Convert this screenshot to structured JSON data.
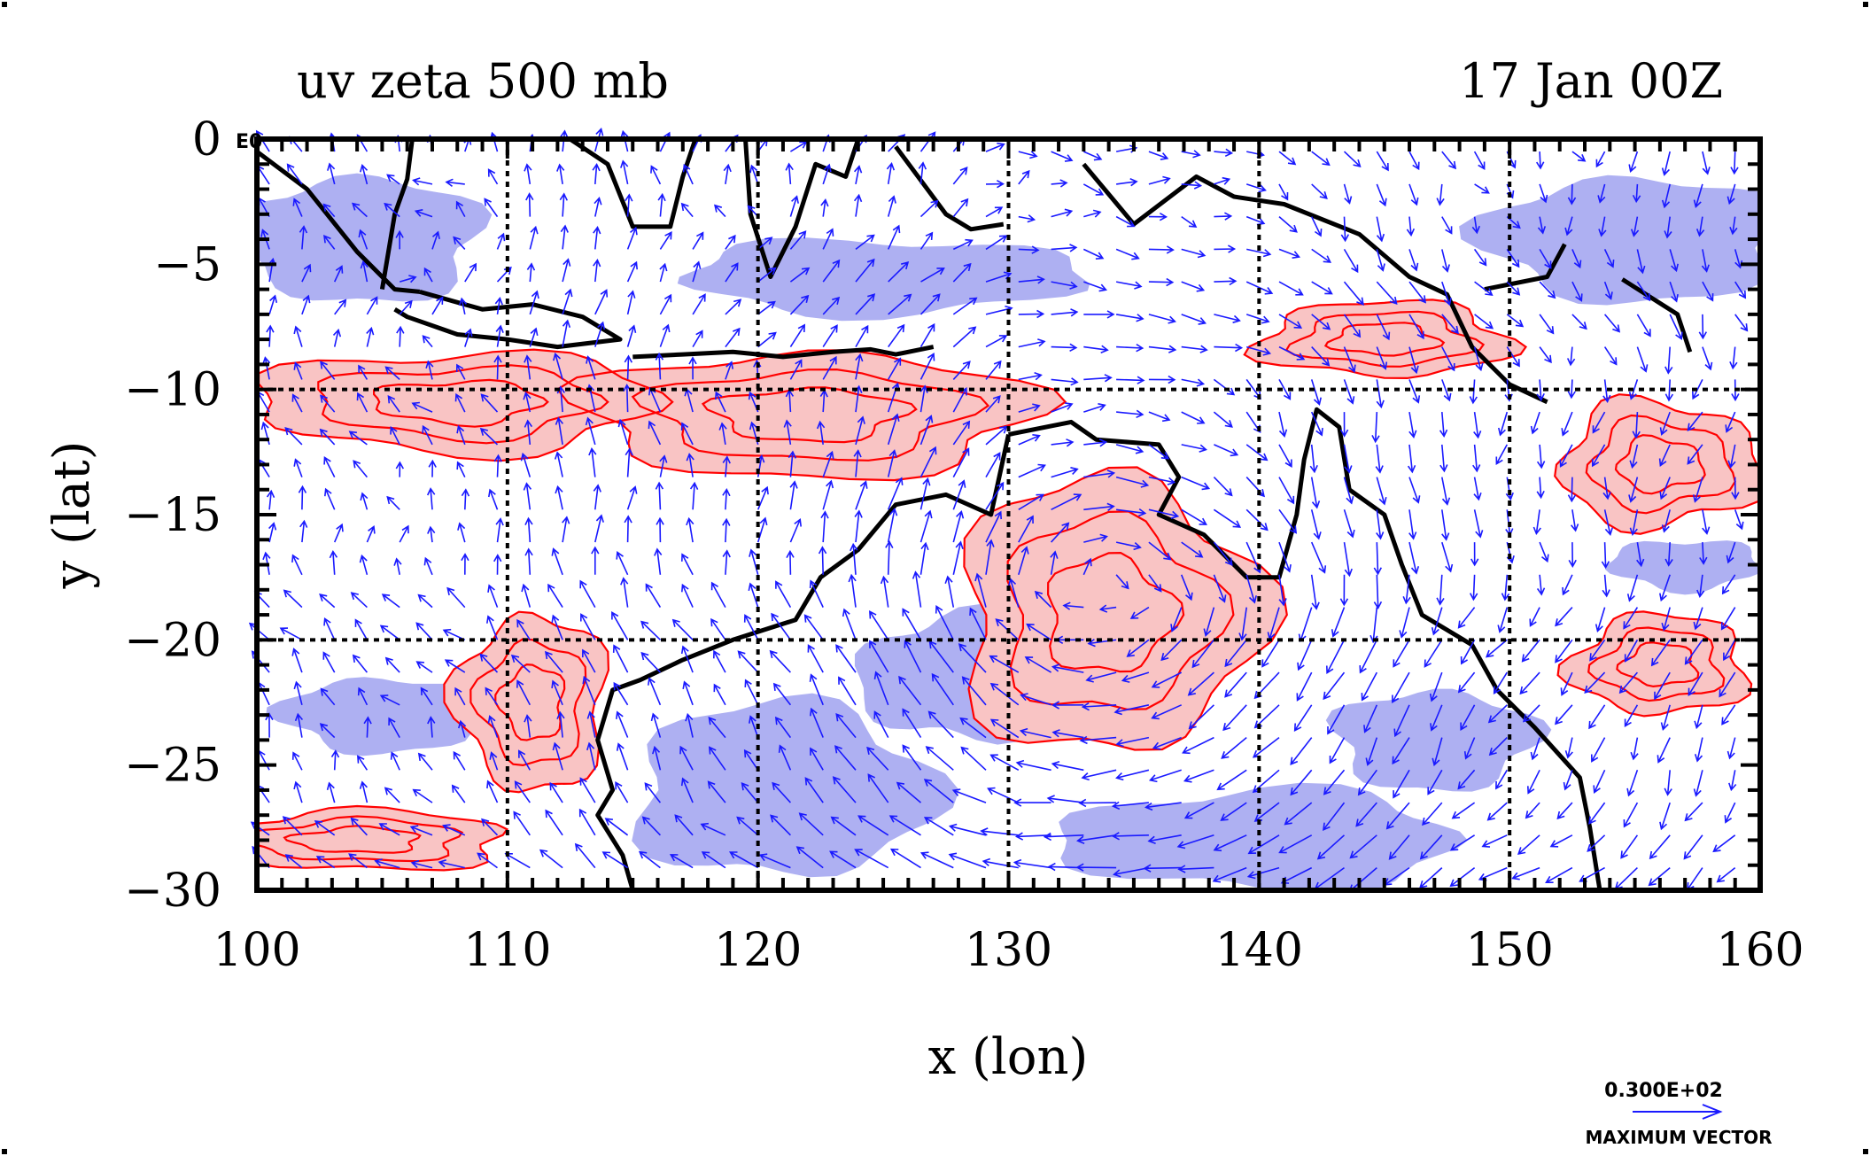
{
  "chart_data": {
    "type": "vector-field-contour",
    "title_left": "uv zeta 500 mb",
    "title_right": "17 Jan 00Z",
    "xlabel": "x (lon)",
    "ylabel": "y (lat)",
    "corner_label": "E0",
    "xlim": [
      100,
      160
    ],
    "ylim": [
      -30,
      0
    ],
    "xticks": [
      "100",
      "110",
      "120",
      "130",
      "140",
      "150",
      "160"
    ],
    "yticks": [
      "0",
      "−5",
      "−10",
      "−15",
      "−20",
      "−25",
      "−30"
    ],
    "xtick_values": [
      100,
      110,
      120,
      130,
      140,
      150,
      160
    ],
    "ytick_values": [
      0,
      -5,
      -10,
      -15,
      -20,
      -25,
      -30
    ],
    "grid": true,
    "vector_legend": {
      "value": "0.300E+02",
      "label": "MAXIMUM VECTOR"
    },
    "colors": {
      "positive_contour": "#ff0000",
      "positive_fill": "#f9c4c4",
      "negative_fill": "#aeb0f2",
      "vectors": "#1a1aff",
      "coastline": "#000000",
      "frame": "#000000"
    },
    "coastlines": [
      [
        [
          100,
          -0.5
        ],
        [
          102,
          -2
        ],
        [
          104,
          -4.5
        ],
        [
          105.5,
          -6
        ],
        [
          106.5,
          -6.1
        ]
      ],
      [
        [
          106.5,
          -6.1
        ],
        [
          109,
          -6.8
        ],
        [
          111,
          -6.6
        ],
        [
          113,
          -7.1
        ],
        [
          114.5,
          -8
        ],
        [
          112,
          -8.3
        ],
        [
          110,
          -8
        ],
        [
          108,
          -7.8
        ],
        [
          106,
          -7.1
        ],
        [
          105.5,
          -6.8
        ]
      ],
      [
        [
          115,
          -8.7
        ],
        [
          117,
          -8.6
        ],
        [
          119,
          -8.5
        ],
        [
          121,
          -8.7
        ],
        [
          123,
          -8.5
        ],
        [
          124.5,
          -8.4
        ],
        [
          125.5,
          -8.6
        ],
        [
          127,
          -8.3
        ]
      ],
      [
        [
          105,
          -6
        ],
        [
          105.5,
          -3
        ],
        [
          106,
          -1.6
        ],
        [
          106.2,
          0
        ]
      ],
      [
        [
          112.5,
          0
        ],
        [
          114,
          -1
        ],
        [
          115,
          -3.5
        ],
        [
          116.5,
          -3.5
        ],
        [
          117,
          -1.5
        ],
        [
          117.5,
          0
        ]
      ],
      [
        [
          119.5,
          0
        ],
        [
          119.7,
          -3
        ],
        [
          120.5,
          -5.5
        ],
        [
          121.5,
          -3.5
        ],
        [
          122.3,
          -1
        ],
        [
          123.5,
          -1.5
        ],
        [
          124,
          0
        ]
      ],
      [
        [
          125.5,
          -0.3
        ],
        [
          127.5,
          -3
        ],
        [
          128.5,
          -3.6
        ],
        [
          129.8,
          -3.4
        ]
      ],
      [
        [
          133,
          -1
        ],
        [
          135,
          -3.4
        ],
        [
          137.5,
          -1.5
        ],
        [
          139,
          -2.3
        ],
        [
          141,
          -2.6
        ],
        [
          144,
          -3.8
        ],
        [
          146,
          -5.5
        ],
        [
          147.5,
          -6.2
        ],
        [
          148.5,
          -8.3
        ],
        [
          150,
          -9.8
        ],
        [
          151.5,
          -10.5
        ]
      ],
      [
        [
          149,
          -6
        ],
        [
          151.5,
          -5.5
        ],
        [
          152.2,
          -4.2
        ]
      ],
      [
        [
          154.5,
          -5.6
        ],
        [
          156.7,
          -7
        ],
        [
          157.2,
          -8.5
        ]
      ],
      [
        [
          130,
          -11.8
        ],
        [
          132.5,
          -11.3
        ],
        [
          133.5,
          -12
        ],
        [
          136,
          -12.2
        ],
        [
          136.8,
          -13.5
        ],
        [
          136,
          -15
        ],
        [
          137.8,
          -15.8
        ],
        [
          139.5,
          -17.5
        ],
        [
          140.8,
          -17.5
        ],
        [
          141.5,
          -15
        ],
        [
          141.8,
          -12.8
        ],
        [
          142.3,
          -10.8
        ],
        [
          143.2,
          -11.5
        ],
        [
          143.6,
          -14
        ],
        [
          145,
          -15
        ],
        [
          145.7,
          -17
        ],
        [
          146.5,
          -19
        ],
        [
          148.5,
          -20.2
        ],
        [
          149.5,
          -22
        ],
        [
          151,
          -23.5
        ],
        [
          152.8,
          -25.5
        ],
        [
          153.2,
          -27.5
        ],
        [
          153.6,
          -30
        ]
      ],
      [
        [
          130,
          -11.8
        ],
        [
          129.3,
          -15
        ],
        [
          127.5,
          -14.2
        ],
        [
          125.5,
          -14.6
        ],
        [
          124,
          -16.4
        ],
        [
          122.5,
          -17.5
        ],
        [
          121.5,
          -19.2
        ],
        [
          119,
          -20
        ],
        [
          117,
          -20.8
        ],
        [
          115.3,
          -21.6
        ],
        [
          114.2,
          -22
        ],
        [
          113.6,
          -24
        ],
        [
          114.2,
          -26
        ],
        [
          113.6,
          -27
        ],
        [
          114.6,
          -28.6
        ],
        [
          115,
          -30
        ]
      ]
    ],
    "positive_regions": [
      {
        "center": [
          108,
          -10.5
        ],
        "radius": [
          8,
          2
        ]
      },
      {
        "center": [
          122,
          -11
        ],
        "radius": [
          9,
          2.5
        ]
      },
      {
        "center": [
          134,
          -19
        ],
        "radius": [
          6,
          5.5
        ]
      },
      {
        "center": [
          156,
          -13
        ],
        "radius": [
          4,
          2.5
        ]
      },
      {
        "center": [
          156,
          -21
        ],
        "radius": [
          3.5,
          2
        ]
      },
      {
        "center": [
          111,
          -22.5
        ],
        "radius": [
          3,
          3.5
        ]
      },
      {
        "center": [
          145,
          -8
        ],
        "radius": [
          5,
          1.5
        ]
      },
      {
        "center": [
          104,
          -28
        ],
        "radius": [
          6,
          1.2
        ]
      }
    ],
    "negative_regions": [
      {
        "center": [
          104,
          -4
        ],
        "radius": [
          5,
          2.5
        ]
      },
      {
        "center": [
          125,
          -5.5
        ],
        "radius": [
          8,
          1.5
        ]
      },
      {
        "center": [
          121,
          -26
        ],
        "radius": [
          6,
          3.5
        ]
      },
      {
        "center": [
          140,
          -28
        ],
        "radius": [
          8,
          2
        ]
      },
      {
        "center": [
          155,
          -4
        ],
        "radius": [
          6,
          2.5
        ]
      },
      {
        "center": [
          147,
          -24
        ],
        "radius": [
          4,
          2
        ]
      },
      {
        "center": [
          105,
          -23
        ],
        "radius": [
          4,
          1.5
        ]
      },
      {
        "center": [
          128,
          -21.5
        ],
        "radius": [
          4,
          2.5
        ]
      },
      {
        "center": [
          157,
          -17
        ],
        "radius": [
          3,
          1
        ]
      }
    ],
    "vortex_center": [
      134,
      -19
    ],
    "vector_grid_step": 1.3
  }
}
